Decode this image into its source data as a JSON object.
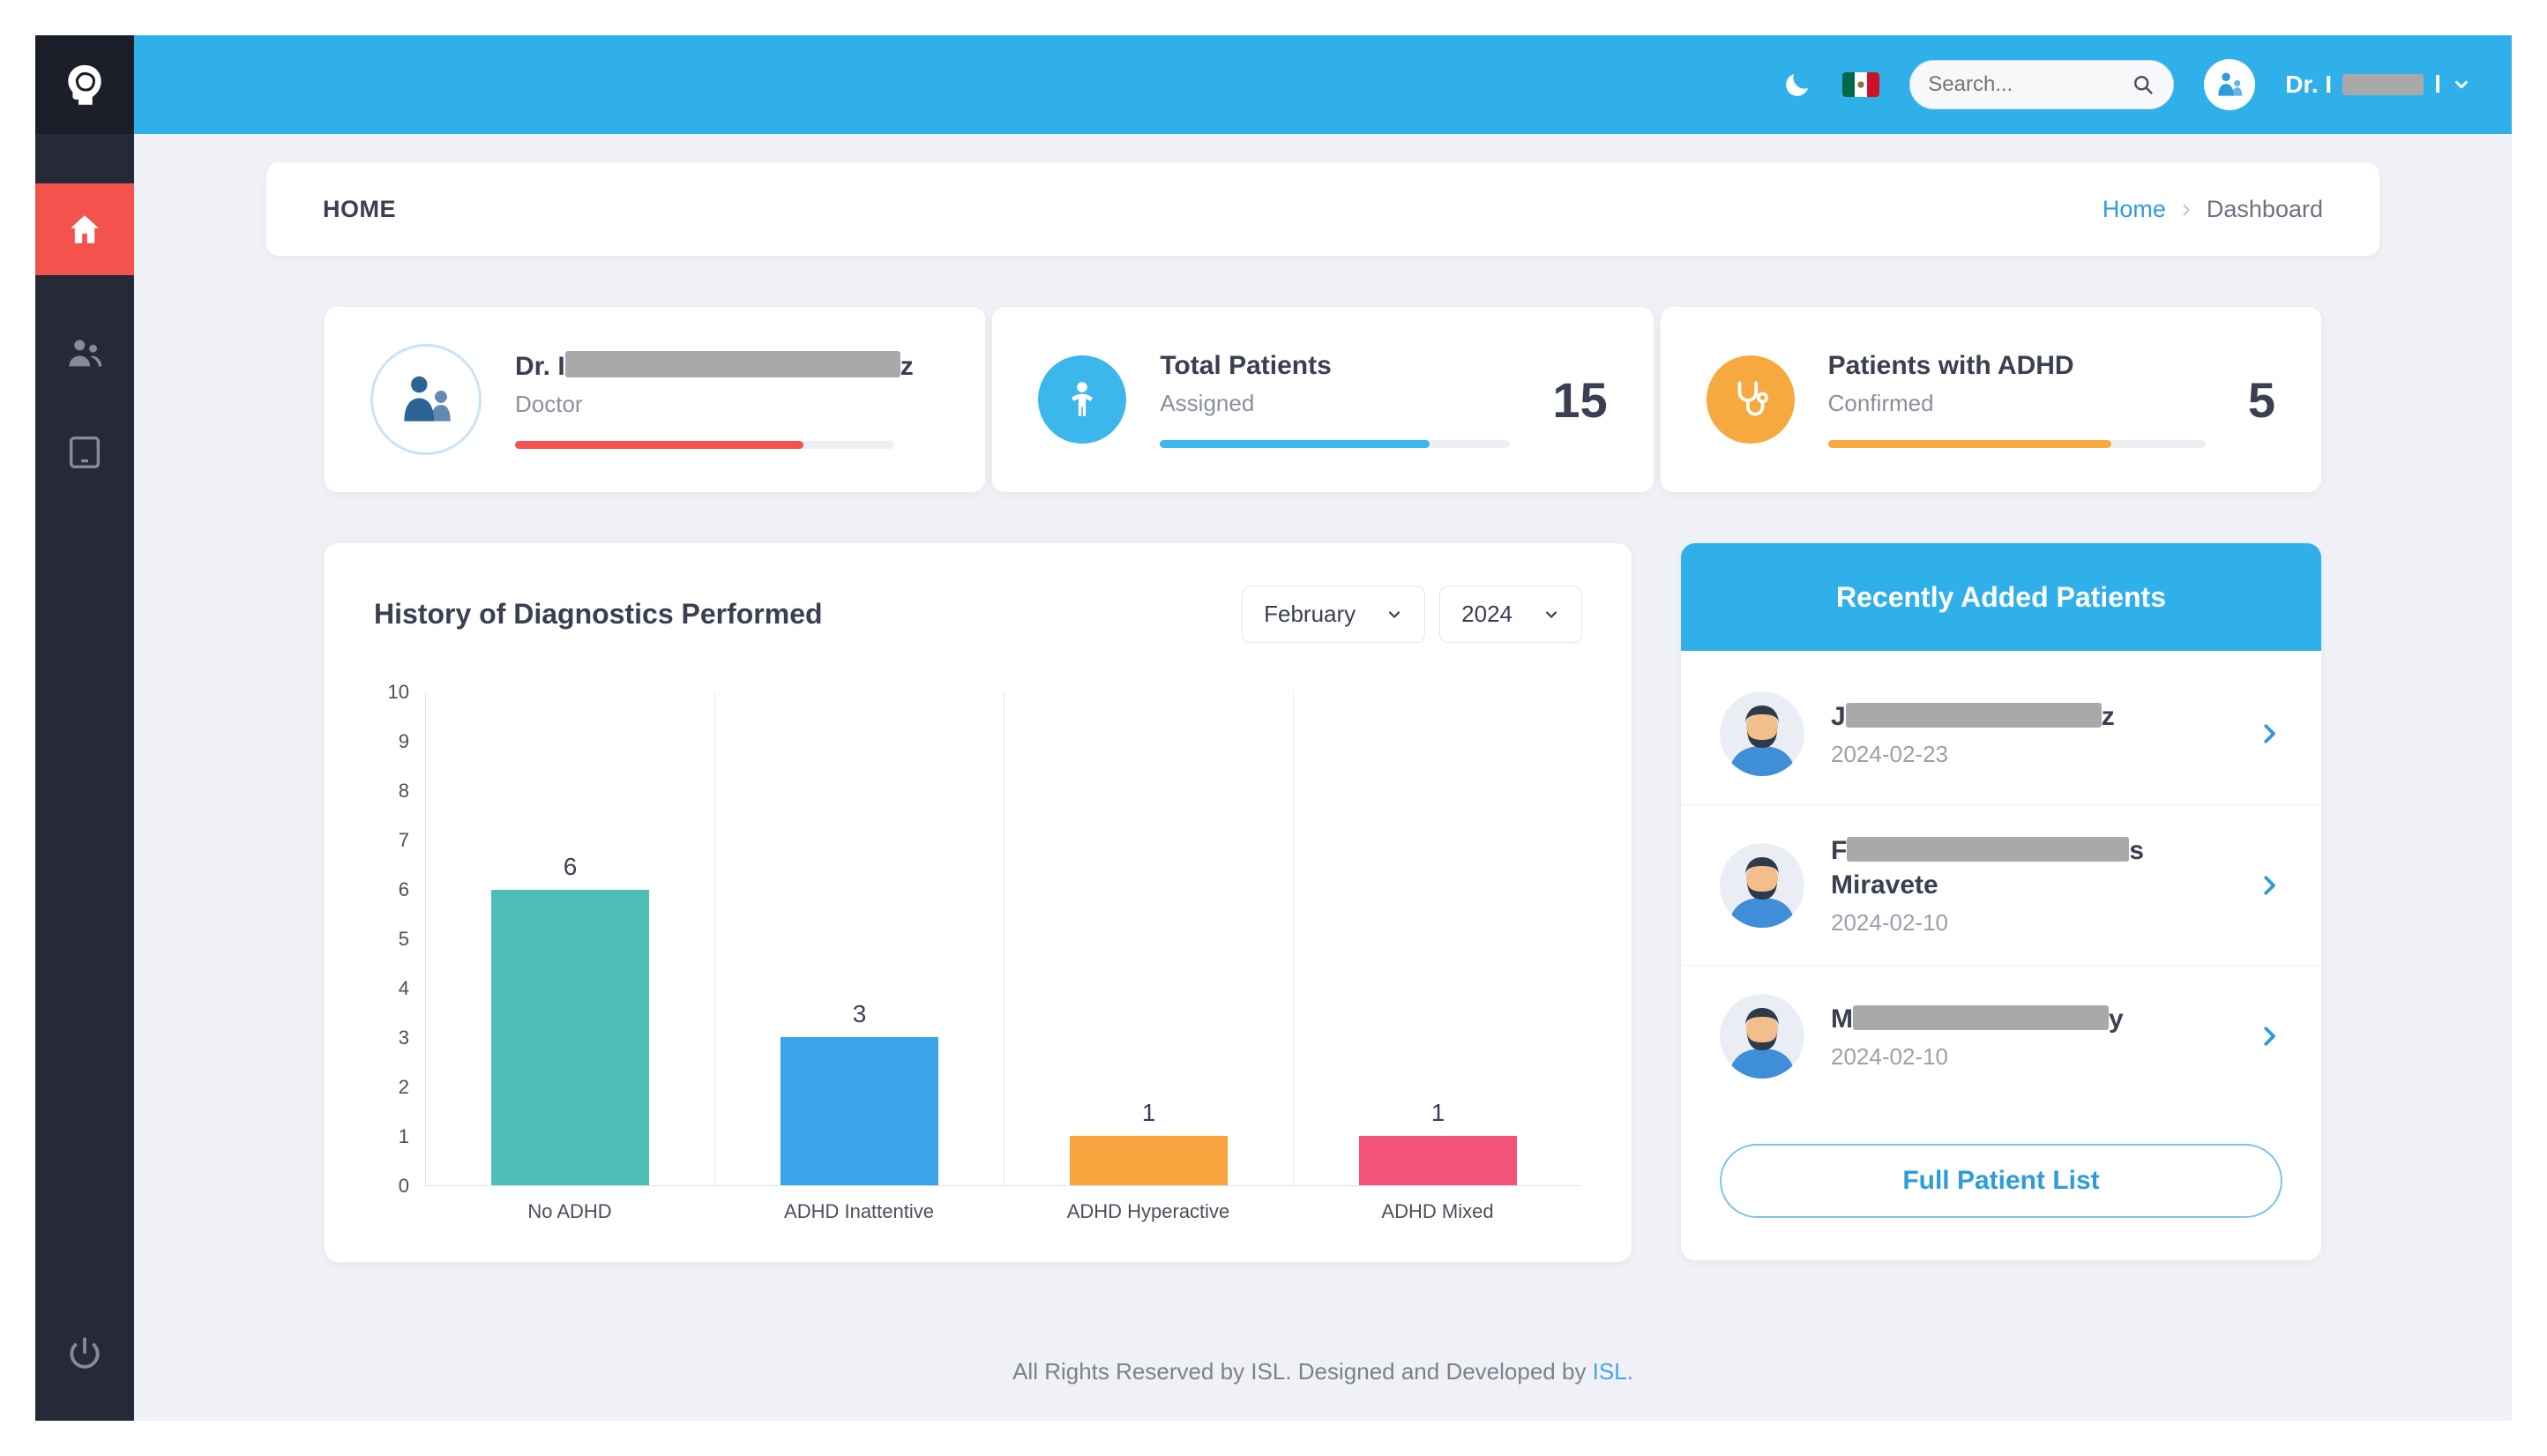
{
  "colors": {
    "accent_blue": "#2FB0E8",
    "sidebar_dark": "#262938",
    "active_red": "#F4524D",
    "link_blue": "#2D9CDB",
    "orange": "#F6A93F",
    "content_bg": "#EFF1F6"
  },
  "topbar": {
    "search_placeholder": "Search...",
    "user_name_prefix": "Dr. I",
    "user_name_suffix": "l"
  },
  "breadcrumb": {
    "page_title": "HOME",
    "home": "Home",
    "separator": "›",
    "current": "Dashboard"
  },
  "stats": {
    "doctor": {
      "name_prefix": "Dr. I",
      "name_suffix": "z",
      "role": "Doctor"
    },
    "total_patients": {
      "title": "Total Patients",
      "subtitle": "Assigned",
      "value": "15"
    },
    "adhd": {
      "title": "Patients with ADHD",
      "subtitle": "Confirmed",
      "value": "5"
    }
  },
  "chart": {
    "title": "History of Diagnostics Performed",
    "month": "February",
    "year": "2024"
  },
  "chart_data": {
    "type": "bar",
    "categories": [
      "No ADHD",
      "ADHD Inattentive",
      "ADHD Hyperactive",
      "ADHD Mixed"
    ],
    "values": [
      6,
      3,
      1,
      1
    ],
    "colors": [
      "#4DBFB8",
      "#3BA3E8",
      "#F9A43F",
      "#F4547C"
    ],
    "title": "History of Diagnostics Performed",
    "xlabel": "",
    "ylabel": "",
    "ylim": [
      0,
      10
    ],
    "yticks": [
      0,
      1,
      2,
      3,
      4,
      5,
      6,
      7,
      8,
      9,
      10
    ],
    "legend": false,
    "gridlines": "vertical"
  },
  "patients": {
    "title": "Recently Added Patients",
    "items": [
      {
        "name_prefix": "J",
        "name_suffix": "z",
        "name_line2": "",
        "date": "2024-02-23"
      },
      {
        "name_prefix": "F",
        "name_suffix": "s",
        "name_line2": "Miravete",
        "date": "2024-02-10"
      },
      {
        "name_prefix": "M",
        "name_suffix": "y",
        "name_line2": "",
        "date": "2024-02-10"
      }
    ],
    "button_label": "Full Patient List"
  },
  "footer": {
    "text": "All Rights Reserved by ISL. Designed and Developed by ",
    "link": "ISL."
  }
}
